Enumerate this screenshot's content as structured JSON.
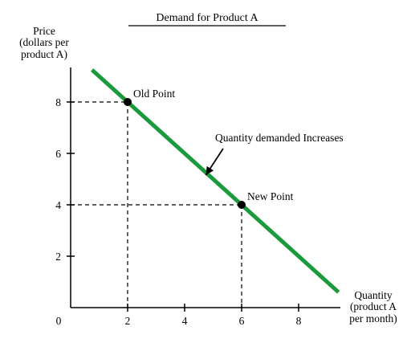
{
  "chart_data": {
    "type": "line",
    "title": "Demand for Product A",
    "ylabel_lines": [
      "Price",
      "(dollars per",
      "product A)"
    ],
    "xlabel_lines": [
      "Quantity",
      "(product A",
      "per month)"
    ],
    "origin_label": "0",
    "xlim": [
      0,
      9.5
    ],
    "ylim": [
      0,
      9.5
    ],
    "x_ticks": [
      2,
      4,
      6,
      8
    ],
    "y_ticks": [
      2,
      4,
      6,
      8
    ],
    "grid": false,
    "series": [
      {
        "x": [
          0.75,
          9.4
        ],
        "y": [
          9.25,
          0.6
        ],
        "color": "#1a9a3c"
      }
    ],
    "points": [
      {
        "label": "Old Point",
        "x": 2,
        "y": 8
      },
      {
        "label": "New Point",
        "x": 6,
        "y": 4
      }
    ],
    "annotations": [
      {
        "text": "Quantity demanded Increases",
        "arrow_to": [
          4.8,
          5.0
        ]
      }
    ]
  }
}
